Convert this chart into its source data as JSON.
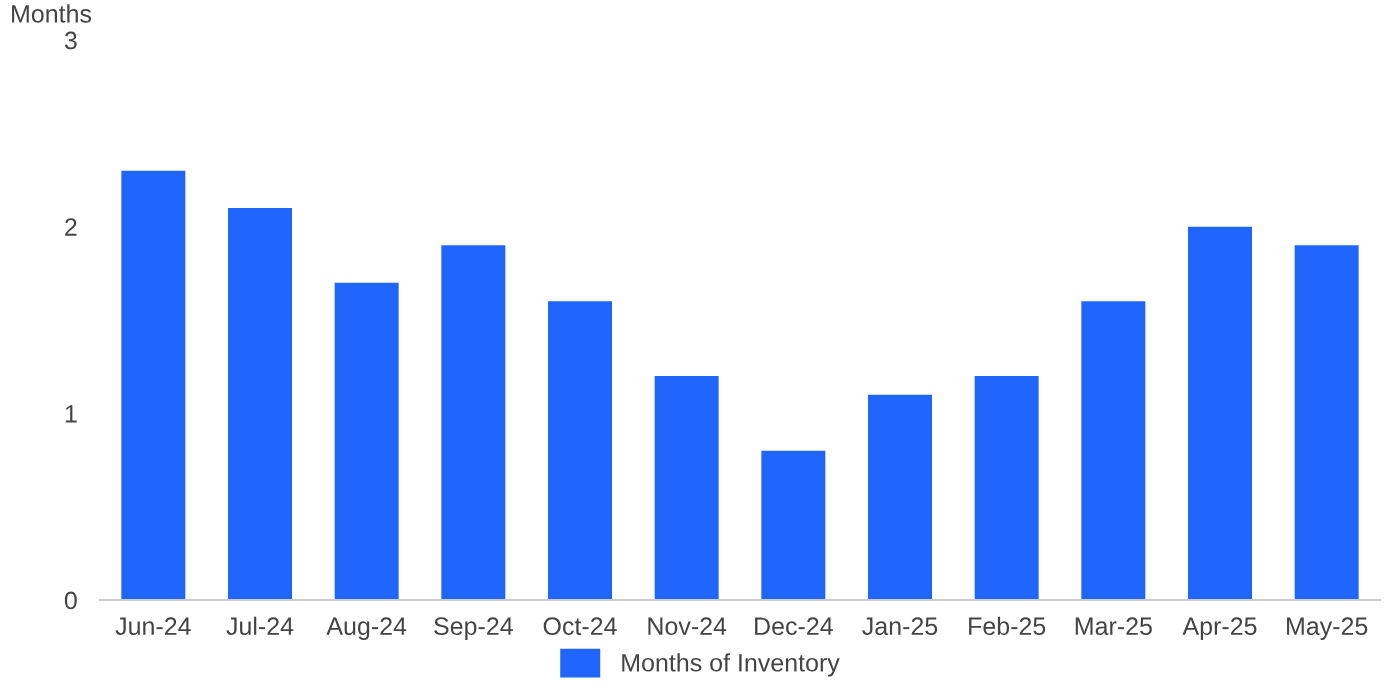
{
  "chart_data": {
    "type": "bar",
    "ylabel": "Months",
    "categories": [
      "Jun-24",
      "Jul-24",
      "Aug-24",
      "Sep-24",
      "Oct-24",
      "Nov-24",
      "Dec-24",
      "Jan-25",
      "Feb-25",
      "Mar-25",
      "Apr-25",
      "May-25"
    ],
    "series": [
      {
        "name": "Months of Inventory",
        "color": "#2166fc",
        "values": [
          2.3,
          2.1,
          1.7,
          1.9,
          1.6,
          1.2,
          0.8,
          1.1,
          1.2,
          1.6,
          2.0,
          1.9
        ]
      }
    ],
    "ylim": [
      0,
      3
    ],
    "yticks": [
      0,
      1,
      2,
      3
    ],
    "grid": false,
    "legend": "bottom"
  }
}
